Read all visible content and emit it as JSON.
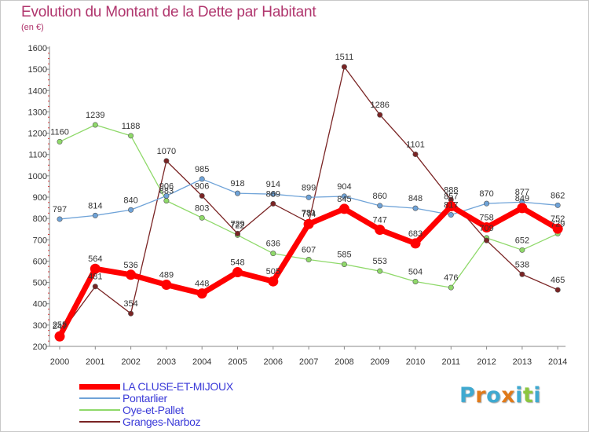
{
  "header": {
    "title": "Evolution du Montant de la Dette par Habitant",
    "subtitle": "(en €)"
  },
  "brand": {
    "text": "Proxiti",
    "letter_colors": [
      "#3fa9d0",
      "#e07a1a",
      "#3fa9d0",
      "#e07a1a",
      "#3fa9d0",
      "#8cc63f",
      "#3fa9d0"
    ]
  },
  "chart_data": {
    "type": "line",
    "title": "Evolution du Montant de la Dette par Habitant",
    "subtitle": "(en €)",
    "xlabel": "",
    "ylabel": "",
    "x": [
      2000,
      2001,
      2002,
      2003,
      2004,
      2005,
      2006,
      2007,
      2008,
      2009,
      2010,
      2011,
      2012,
      2013,
      2014
    ],
    "yticks": [
      200,
      300,
      400,
      500,
      600,
      700,
      800,
      900,
      1000,
      1100,
      1200,
      1300,
      1400,
      1500,
      1600
    ],
    "ylim": [
      200,
      1600
    ],
    "grid": false,
    "legend_position": "bottom-left",
    "series": [
      {
        "name": "Pontarlier",
        "color": "#6fa3d8",
        "line_width": 1.3,
        "marker_radius": 3.2,
        "values": [
          797,
          814,
          840,
          906,
          985,
          918,
          914,
          899,
          904,
          860,
          848,
          817,
          870,
          877,
          862
        ],
        "labels": [
          "797",
          "814",
          "840",
          "906",
          "985",
          "918",
          "914",
          "899",
          "904",
          "860",
          "848",
          "817",
          "870",
          "877",
          "862"
        ]
      },
      {
        "name": "Oye-et-Pallet",
        "color": "#8fd96a",
        "line_width": 1.3,
        "marker_radius": 3.2,
        "values": [
          1160,
          1239,
          1188,
          883,
          803,
          722,
          636,
          607,
          585,
          553,
          504,
          476,
          709,
          652,
          729
        ],
        "labels": [
          "1160",
          "1239",
          "1188",
          "883",
          "803",
          "722",
          "636",
          "607",
          "585",
          "553",
          "504",
          "476",
          "709",
          "652",
          "729"
        ]
      },
      {
        "name": "Granges-Narboz",
        "color": "#7a2424",
        "line_width": 1.3,
        "marker_radius": 3.2,
        "values": [
          255,
          481,
          354,
          1070,
          906,
          729,
          869,
          781,
          1511,
          1286,
          1101,
          888,
          697,
          538,
          465
        ],
        "labels": [
          "255",
          "481",
          "354",
          "1070",
          "906",
          "729",
          "869",
          "781",
          "1511",
          "1286",
          "1101",
          "888",
          "",
          "538",
          "465"
        ]
      },
      {
        "name": "LA CLUSE-ET-MIJOUX",
        "color": "#ff0000",
        "line_width": 7,
        "marker_radius": 6.5,
        "values": [
          247,
          564,
          536,
          489,
          448,
          548,
          505,
          774,
          845,
          747,
          683,
          857,
          758,
          849,
          752
        ],
        "labels": [
          "247",
          "564",
          "536",
          "489",
          "448",
          "548",
          "505",
          "774",
          "845",
          "747",
          "683",
          "857",
          "758",
          "849",
          "752"
        ]
      }
    ]
  },
  "legend": {
    "items": [
      {
        "label": "LA CLUSE-ET-MIJOUX",
        "color": "#ff0000",
        "thickness": 7
      },
      {
        "label": "Pontarlier",
        "color": "#6fa3d8",
        "thickness": 2
      },
      {
        "label": "Oye-et-Pallet",
        "color": "#8fd96a",
        "thickness": 2
      },
      {
        "label": "Granges-Narboz",
        "color": "#7a2424",
        "thickness": 2
      }
    ]
  }
}
